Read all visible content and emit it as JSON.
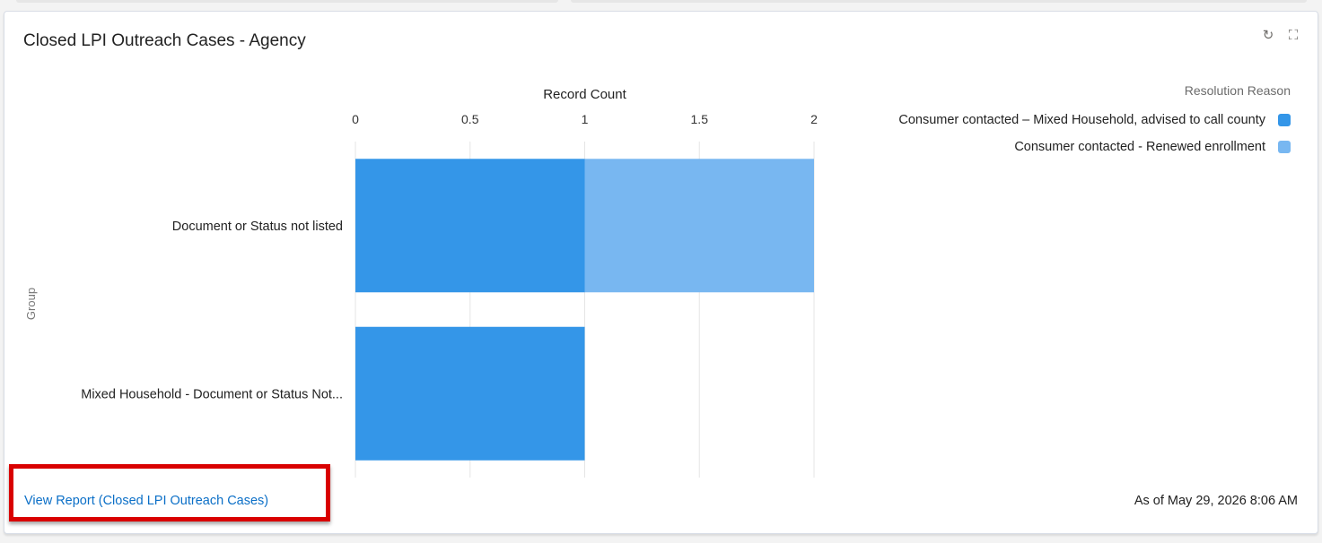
{
  "card": {
    "title": "Closed LPI Outreach Cases - Agency",
    "refresh_icon": "refresh-icon",
    "expand_icon": "expand-icon",
    "footer_link": "View Report (Closed LPI Outreach Cases)",
    "timestamp": "As of May 29, 2026 8:06 AM"
  },
  "legend": {
    "title": "Resolution Reason",
    "items": [
      {
        "label": "Consumer contacted – Mixed Household, advised to call county",
        "color": "#3496e8"
      },
      {
        "label": "Consumer contacted - Renewed enrollment",
        "color": "#78b7f1"
      }
    ]
  },
  "chart_data": {
    "type": "bar",
    "orientation": "horizontal",
    "stacked": true,
    "xlabel": "Record Count",
    "ylabel": "Group",
    "xlim": [
      0,
      2
    ],
    "x_ticks": [
      "0",
      "0.5",
      "1",
      "1.5",
      "2"
    ],
    "x_tick_values": [
      0,
      0.5,
      1,
      1.5,
      2
    ],
    "categories": [
      "Document or Status not listed",
      "Mixed Household - Document or Status Not..."
    ],
    "series": [
      {
        "name": "Consumer contacted – Mixed Household, advised to call county",
        "values": [
          1,
          1
        ],
        "color": "#3496e8"
      },
      {
        "name": "Consumer contacted - Renewed enrollment",
        "values": [
          1,
          0
        ],
        "color": "#78b7f1"
      }
    ],
    "grid": true,
    "legend_position": "top-right"
  }
}
